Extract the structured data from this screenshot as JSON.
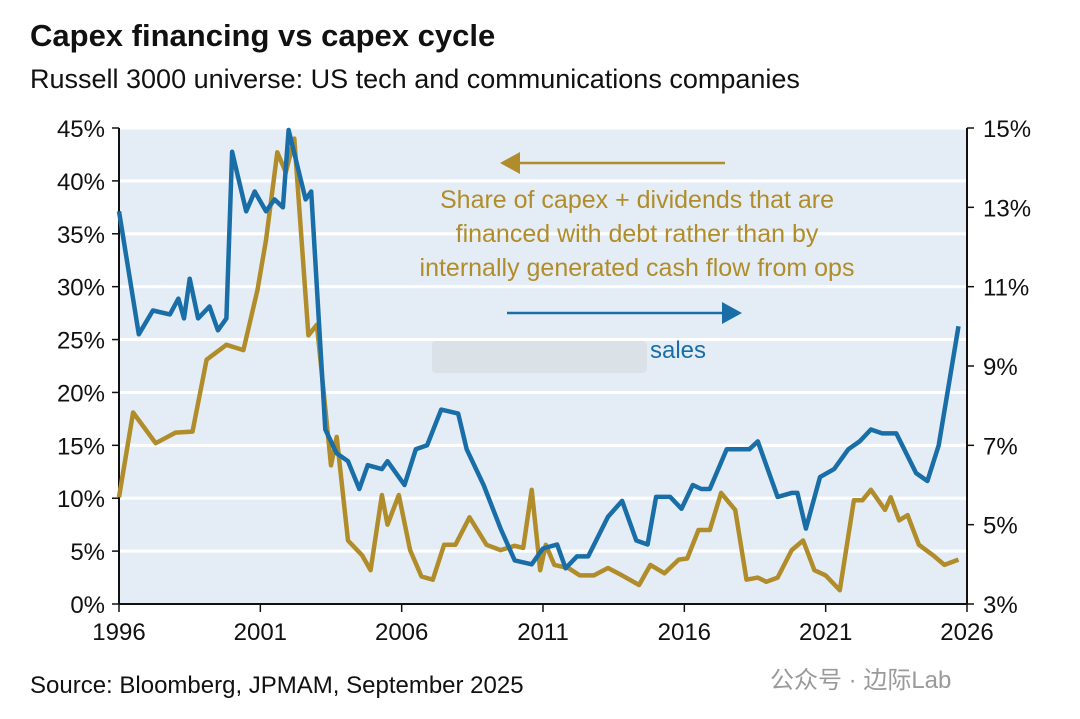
{
  "header": {
    "title": "Capex financing vs capex cycle",
    "subtitle": "Russell 3000 universe: US tech and communications companies"
  },
  "footer": {
    "source": "Source: Bloomberg, JPMAM, September 2025",
    "watermark": "公众号 · 边际Lab"
  },
  "chart_data": {
    "type": "line",
    "title": "Capex financing vs capex cycle",
    "subtitle": "Russell 3000 universe: US tech and communications companies",
    "xlim": [
      1996,
      2026
    ],
    "x_ticks": [
      "1996",
      "2001",
      "2006",
      "2011",
      "2016",
      "2021",
      "2026"
    ],
    "left_axis": {
      "ylim": [
        0,
        45
      ],
      "ticks": [
        "0%",
        "5%",
        "10%",
        "15%",
        "20%",
        "25%",
        "30%",
        "35%",
        "40%",
        "45%"
      ]
    },
    "right_axis": {
      "ylim": [
        3,
        15
      ],
      "ticks": [
        "3%",
        "5%",
        "7%",
        "9%",
        "11%",
        "13%",
        "15%"
      ]
    },
    "grid": true,
    "colors": {
      "gold": "#b08d2a",
      "blue": "#1a6ea8",
      "plot_bg": "#e4edf5"
    },
    "annotations": {
      "gold_label": [
        "Share of capex + dividends that are",
        "financed with debt rather than by",
        "internally generated cash flow from ops"
      ],
      "blue_label": "sales"
    },
    "series": [
      {
        "axis": "left",
        "color": "#b08d2a",
        "x": [
          1996.0,
          1996.5,
          1997.3,
          1998.0,
          1998.6,
          1999.1,
          1999.8,
          2000.4,
          2000.9,
          2001.2,
          2001.6,
          2001.9,
          2002.2,
          2002.7,
          2003.0,
          2003.5,
          2003.7,
          2004.1,
          2004.6,
          2004.9,
          2005.3,
          2005.5,
          2005.9,
          2006.3,
          2006.7,
          2007.1,
          2007.5,
          2007.9,
          2008.4,
          2009.0,
          2009.5,
          2010.0,
          2010.3,
          2010.6,
          2010.9,
          2011.1,
          2011.4,
          2011.9,
          2012.3,
          2012.8,
          2013.3,
          2013.8,
          2014.4,
          2014.8,
          2015.3,
          2015.8,
          2016.1,
          2016.5,
          2016.9,
          2017.3,
          2017.8,
          2018.2,
          2018.6,
          2018.9,
          2019.3,
          2019.8,
          2020.2,
          2020.6,
          2021.0,
          2021.5,
          2022.0,
          2022.3,
          2022.6,
          2023.1,
          2023.3,
          2023.6,
          2023.9,
          2024.3,
          2024.8,
          2025.2,
          2025.7
        ],
        "y": [
          10.1,
          18.1,
          15.2,
          16.2,
          16.3,
          23.1,
          24.5,
          24.0,
          29.7,
          34.4,
          42.7,
          40.8,
          44.0,
          25.4,
          26.4,
          13.1,
          15.8,
          6.0,
          4.6,
          3.2,
          10.3,
          7.5,
          10.3,
          5.1,
          2.6,
          2.3,
          5.6,
          5.6,
          8.2,
          5.6,
          5.1,
          5.5,
          5.3,
          10.8,
          3.2,
          5.6,
          3.7,
          3.4,
          2.7,
          2.7,
          3.4,
          2.7,
          1.8,
          3.7,
          2.9,
          4.2,
          4.3,
          7.0,
          7.0,
          10.5,
          8.9,
          2.3,
          2.5,
          2.1,
          2.5,
          5.1,
          6.0,
          3.2,
          2.7,
          1.3,
          9.8,
          9.8,
          10.8,
          8.9,
          10.1,
          7.9,
          8.4,
          5.6,
          4.6,
          3.7,
          4.2
        ]
      },
      {
        "axis": "right",
        "color": "#1a6ea8",
        "name": "sales",
        "x": [
          1996.0,
          1996.7,
          1997.2,
          1997.8,
          1998.1,
          1998.3,
          1998.5,
          1998.8,
          1999.2,
          1999.5,
          1999.8,
          2000.0,
          2000.5,
          2000.8,
          2001.2,
          2001.5,
          2001.8,
          2002.0,
          2002.6,
          2002.8,
          2003.3,
          2003.7,
          2004.1,
          2004.5,
          2004.8,
          2005.3,
          2005.5,
          2006.1,
          2006.5,
          2006.9,
          2007.4,
          2008.0,
          2008.3,
          2008.9,
          2009.5,
          2010.0,
          2010.6,
          2011.0,
          2011.5,
          2011.8,
          2012.2,
          2012.6,
          2013.3,
          2013.8,
          2014.3,
          2014.7,
          2015.0,
          2015.5,
          2015.9,
          2016.3,
          2016.6,
          2016.9,
          2017.5,
          2018.3,
          2018.6,
          2019.3,
          2019.8,
          2020.0,
          2020.3,
          2020.8,
          2021.3,
          2021.8,
          2022.2,
          2022.6,
          2023.0,
          2023.5,
          2024.2,
          2024.6,
          2025.0,
          2025.7
        ],
        "y": [
          12.9,
          9.8,
          10.4,
          10.3,
          10.7,
          10.2,
          11.2,
          10.2,
          10.5,
          9.9,
          10.2,
          14.4,
          12.9,
          13.4,
          12.9,
          13.2,
          13.0,
          14.95,
          13.2,
          13.4,
          7.4,
          6.8,
          6.6,
          5.9,
          6.5,
          6.4,
          6.6,
          6.0,
          6.9,
          7.0,
          7.9,
          7.8,
          6.9,
          6.0,
          4.9,
          4.1,
          4.0,
          4.4,
          4.5,
          3.9,
          4.2,
          4.2,
          5.2,
          5.6,
          4.6,
          4.5,
          5.7,
          5.7,
          5.4,
          6.0,
          5.9,
          5.9,
          6.9,
          6.9,
          7.1,
          5.7,
          5.8,
          5.8,
          4.9,
          6.2,
          6.4,
          6.9,
          7.1,
          7.4,
          7.3,
          7.3,
          6.3,
          6.1,
          7.0,
          10.0
        ]
      }
    ]
  }
}
